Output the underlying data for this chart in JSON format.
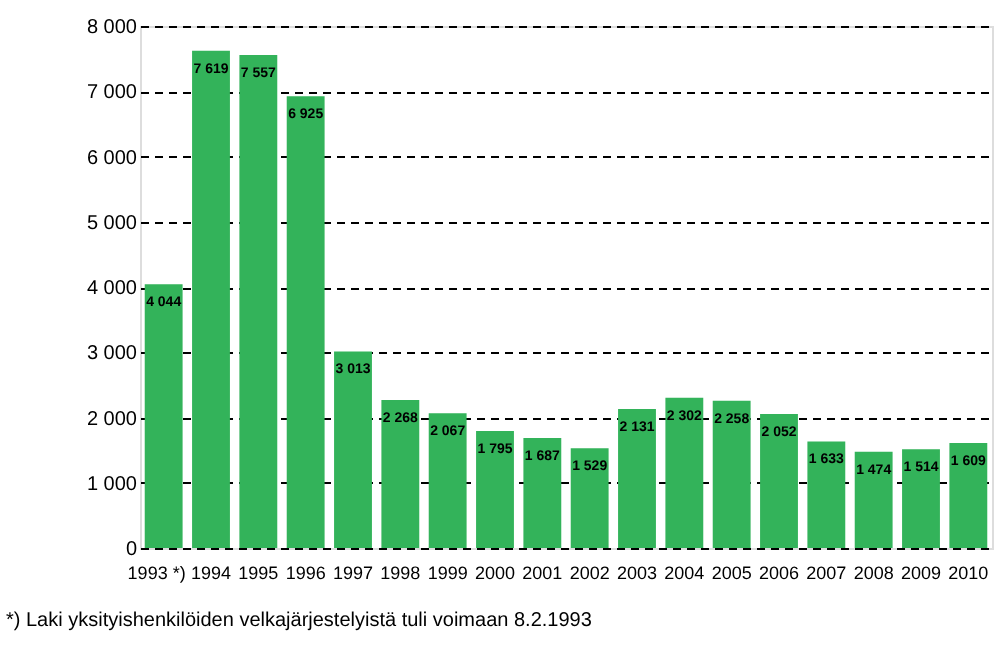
{
  "chart_data": {
    "type": "bar",
    "categories": [
      "1993 *)",
      "1994",
      "1995",
      "1996",
      "1997",
      "1998",
      "1999",
      "2000",
      "2001",
      "2002",
      "2003",
      "2004",
      "2005",
      "2006",
      "2007",
      "2008",
      "2009",
      "2010"
    ],
    "values": [
      4044,
      7619,
      7557,
      6925,
      3013,
      2268,
      2067,
      1795,
      1687,
      1529,
      2131,
      2302,
      2258,
      2052,
      1633,
      1474,
      1514,
      1609
    ],
    "value_labels": [
      "4 044",
      "7 619",
      "7 557",
      "6 925",
      "3 013",
      "2 268",
      "2 067",
      "1 795",
      "1 687",
      "1 529",
      "2 131",
      "2 302",
      "2 258",
      "2 052",
      "1 633",
      "1 474",
      "1 514",
      "1 609"
    ],
    "color": "#33b35a",
    "ylim": [
      0,
      8000
    ],
    "yticks": [
      0,
      {
        "value": 1000,
        "label": "1 000"
      },
      {
        "value": 2000,
        "label": "2 000"
      },
      {
        "value": 3000,
        "label": "3 000"
      },
      {
        "value": 4000,
        "label": "4 000"
      },
      {
        "value": 5000,
        "label": "5 000"
      },
      {
        "value": 6000,
        "label": "6 000"
      },
      {
        "value": 7000,
        "label": "7 000"
      },
      {
        "value": 8000,
        "label": "8 000"
      }
    ],
    "grid": "y",
    "line_style": "dashed",
    "annotations": [
      "*) Laki yksityishenkilöiden velkajärjestelyistä tuli voimaan 8.2.1993"
    ]
  }
}
